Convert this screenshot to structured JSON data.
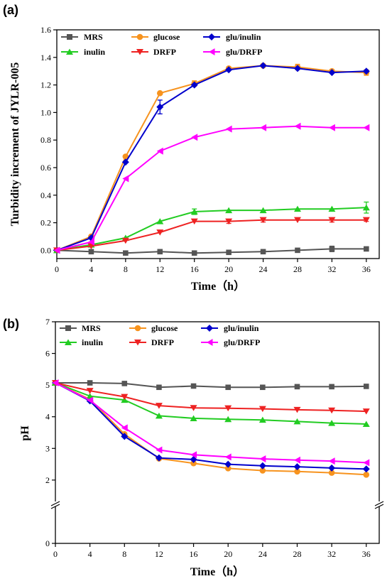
{
  "chart_data": [
    {
      "type": "line",
      "panel_label": "(a)",
      "xlabel": "Time（h）",
      "ylabel": "Turbidity increment of JYLR-005",
      "xlim": [
        0,
        37.5
      ],
      "ylim": [
        -0.06,
        1.6
      ],
      "x_ticks": [
        0,
        4,
        8,
        12,
        16,
        20,
        24,
        28,
        32,
        36
      ],
      "y_ticks": [
        0.0,
        0.2,
        0.4,
        0.6,
        0.8,
        1.0,
        1.2,
        1.4,
        1.6
      ],
      "y_tick_labels": [
        "0.0",
        "0.2",
        "0.4",
        "0.6",
        "0.8",
        "1.0",
        "1.2",
        "1.4",
        "1.6"
      ],
      "legend_position": "top-left",
      "x": [
        0,
        4,
        8,
        12,
        16,
        20,
        24,
        28,
        32,
        36
      ],
      "series": [
        {
          "name": "MRS",
          "color": "#555555",
          "marker": "square",
          "values": [
            0.0,
            -0.01,
            -0.02,
            -0.01,
            -0.02,
            -0.015,
            -0.01,
            0.0,
            0.01,
            0.01
          ],
          "errors": [
            0,
            0,
            0,
            0,
            0,
            0,
            0,
            0,
            0.02,
            0
          ]
        },
        {
          "name": "glucose",
          "color": "#f7931e",
          "marker": "circle",
          "values": [
            0.0,
            0.1,
            0.68,
            1.14,
            1.21,
            1.32,
            1.34,
            1.33,
            1.3,
            1.29
          ],
          "errors": [
            0,
            0,
            0,
            0,
            0.02,
            0,
            0,
            0.02,
            0,
            0.02
          ]
        },
        {
          "name": "glu/inulin",
          "color": "#0000cc",
          "marker": "diamond",
          "values": [
            0.0,
            0.09,
            0.64,
            1.04,
            1.2,
            1.31,
            1.34,
            1.32,
            1.29,
            1.3
          ],
          "errors": [
            0,
            0,
            0,
            0.05,
            0,
            0,
            0,
            0,
            0,
            0
          ]
        },
        {
          "name": "inulin",
          "color": "#22cc22",
          "marker": "triangle-up",
          "values": [
            0.0,
            0.04,
            0.09,
            0.21,
            0.28,
            0.29,
            0.29,
            0.3,
            0.3,
            0.31
          ],
          "errors": [
            0,
            0,
            0,
            0,
            0.02,
            0,
            0,
            0,
            0,
            0.04
          ]
        },
        {
          "name": "DRFP",
          "color": "#ee2222",
          "marker": "triangle-down",
          "values": [
            0.0,
            0.03,
            0.07,
            0.13,
            0.21,
            0.21,
            0.22,
            0.22,
            0.22,
            0.22
          ],
          "errors": [
            0,
            0,
            0,
            0,
            0,
            0.015,
            0.015,
            0,
            0.015,
            0.01
          ]
        },
        {
          "name": "glu/DRFP",
          "color": "#ff00ff",
          "marker": "triangle-left",
          "values": [
            0.0,
            0.06,
            0.52,
            0.72,
            0.82,
            0.88,
            0.89,
            0.9,
            0.89,
            0.89
          ],
          "errors": [
            0,
            0,
            0,
            0,
            0,
            0,
            0,
            0,
            0,
            0
          ]
        }
      ]
    },
    {
      "type": "line",
      "panel_label": "(b)",
      "xlabel": "Time（h）",
      "ylabel": "pH",
      "xlim": [
        0,
        37.5
      ],
      "ylim": [
        0,
        7
      ],
      "y_axis_break": true,
      "x_ticks": [
        0,
        4,
        8,
        12,
        16,
        20,
        24,
        28,
        32,
        36
      ],
      "y_ticks": [
        0,
        2,
        3,
        4,
        5,
        6,
        7
      ],
      "y_tick_labels": [
        "0",
        "2",
        "3",
        "4",
        "5",
        "6",
        "7"
      ],
      "legend_position": "top-left",
      "x": [
        0,
        4,
        8,
        12,
        16,
        20,
        24,
        28,
        32,
        36
      ],
      "series": [
        {
          "name": "MRS",
          "color": "#555555",
          "marker": "square",
          "values": [
            5.07,
            5.07,
            5.05,
            4.93,
            4.97,
            4.93,
            4.93,
            4.95,
            4.95,
            4.96
          ]
        },
        {
          "name": "glucose",
          "color": "#f7931e",
          "marker": "circle",
          "values": [
            5.07,
            4.55,
            3.45,
            2.68,
            2.53,
            2.37,
            2.3,
            2.27,
            2.23,
            2.17
          ]
        },
        {
          "name": "glu/inulin",
          "color": "#0000cc",
          "marker": "diamond",
          "values": [
            5.07,
            4.5,
            3.38,
            2.7,
            2.65,
            2.5,
            2.45,
            2.42,
            2.38,
            2.35
          ]
        },
        {
          "name": "inulin",
          "color": "#22cc22",
          "marker": "triangle-up",
          "values": [
            5.07,
            4.65,
            4.53,
            4.03,
            3.95,
            3.92,
            3.9,
            3.85,
            3.8,
            3.77
          ]
        },
        {
          "name": "DRFP",
          "color": "#ee2222",
          "marker": "triangle-down",
          "values": [
            5.07,
            4.82,
            4.63,
            4.35,
            4.28,
            4.27,
            4.25,
            4.22,
            4.2,
            4.17
          ]
        },
        {
          "name": "glu/DRFP",
          "color": "#ff00ff",
          "marker": "triangle-left",
          "values": [
            5.07,
            4.52,
            3.65,
            2.95,
            2.8,
            2.73,
            2.67,
            2.63,
            2.6,
            2.55
          ]
        }
      ]
    }
  ]
}
